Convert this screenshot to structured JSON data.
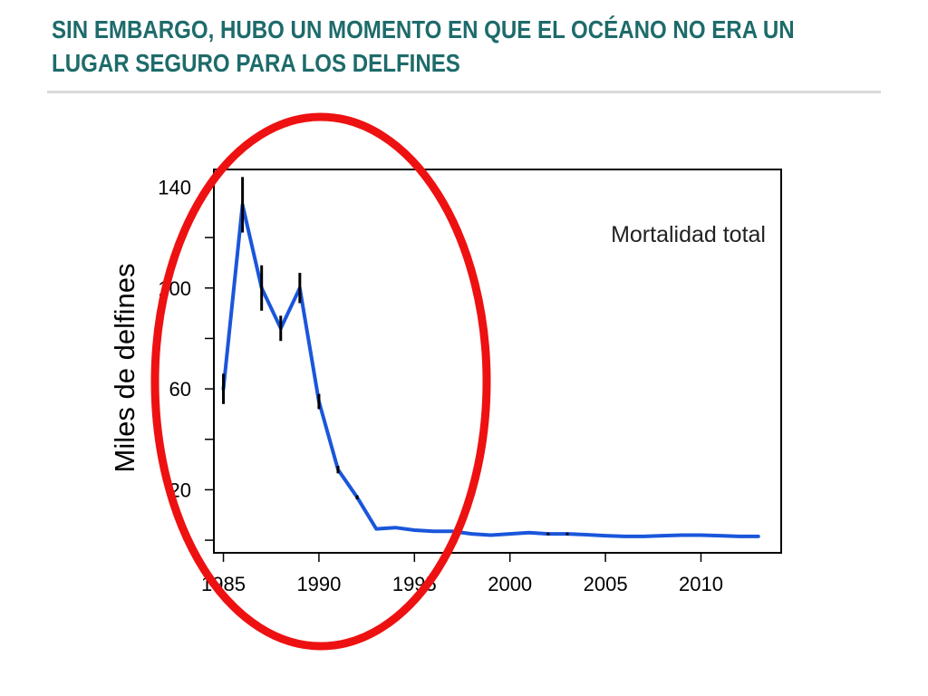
{
  "slide": {
    "title_line1": "SIN EMBARGO,  HUBO UN MOMENTO EN QUE EL OCÉANO NO ERA UN",
    "title_line2": "LUGAR SEGURO PARA LOS DELFINES"
  },
  "colors": {
    "title": "#1e6b6b",
    "series_line": "#1a56db",
    "error_bars": "#000000",
    "highlight_ellipse": "#ee1111",
    "rule": "#d9d9d9"
  },
  "chart_data": {
    "type": "line",
    "title": "",
    "annotation": "Mortalidad total",
    "xlabel": "",
    "ylabel": "Miles de delfines",
    "xlim": [
      1984.5,
      2014.2
    ],
    "ylim": [
      -5,
      147
    ],
    "x_ticks": [
      1985,
      1990,
      1995,
      2000,
      2005,
      2010
    ],
    "x_tick_labels": [
      "1985",
      "1990",
      "1995",
      "2000",
      "2005",
      "2010"
    ],
    "y_ticks": [
      0,
      20,
      40,
      60,
      80,
      100,
      120,
      140
    ],
    "y_tick_labels": [
      "",
      "20",
      "",
      "60",
      "",
      "100",
      "",
      "140"
    ],
    "grid": false,
    "series": [
      {
        "x": [
          1985,
          1986,
          1987,
          1988,
          1989,
          1990,
          1991,
          1992,
          1993,
          1994,
          1995,
          1996,
          1997,
          1998,
          1999,
          2000,
          2001,
          2002,
          2003,
          2004,
          2005,
          2006,
          2007,
          2008,
          2009,
          2010,
          2011,
          2012,
          2013
        ],
        "y": [
          60,
          133,
          100,
          84,
          100,
          55,
          28,
          17,
          4.5,
          5,
          4,
          3.5,
          3.5,
          2.5,
          2,
          2.5,
          3,
          2.5,
          2.5,
          2.2,
          1.8,
          1.5,
          1.5,
          1.8,
          2,
          2,
          1.8,
          1.5,
          1.5
        ],
        "err": [
          6,
          11,
          9,
          5,
          6,
          3,
          1.5,
          0.8,
          0,
          0,
          0,
          0,
          0,
          0,
          0,
          0,
          0,
          0.5,
          0.5,
          0,
          0,
          0,
          0,
          0,
          0,
          0,
          0,
          0,
          0
        ]
      }
    ],
    "highlight": "ellipse around 1985–1995"
  }
}
